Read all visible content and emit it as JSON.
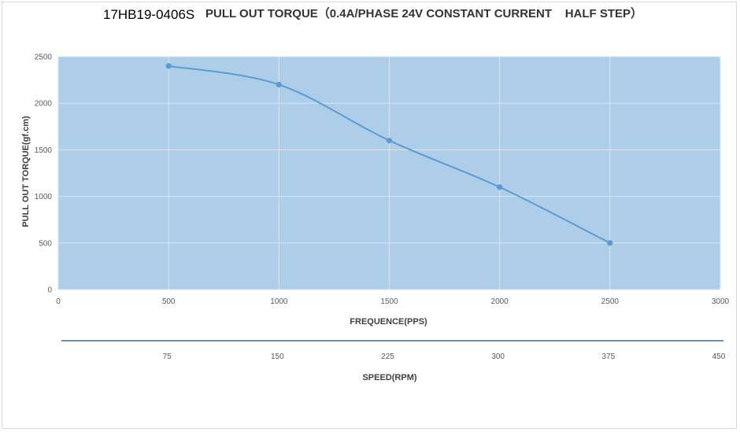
{
  "chart_data": {
    "type": "line",
    "title_model": "17HB19-0406S",
    "title": "PULL OUT TORQUE（0.4A/PHASE 24V CONSTANT CURRENT    HALF STEP）",
    "xlabel": "FREQUENCE(PPS)",
    "ylabel": "PULL OUT TORQUE(gf.cm)",
    "xlim": [
      0,
      3000
    ],
    "ylim": [
      0,
      2500
    ],
    "x_ticks": [
      0,
      500,
      1000,
      1500,
      2000,
      2500,
      3000
    ],
    "y_ticks": [
      0,
      500,
      1000,
      1500,
      2000,
      2500
    ],
    "grid": true,
    "plot_background": "#aecde9",
    "line_color": "#5b9bd5",
    "series": [
      {
        "x": [
          500,
          1000,
          1500,
          2000,
          2500
        ],
        "y": [
          2400,
          2200,
          1600,
          1100,
          500
        ]
      }
    ],
    "secondary_axis": {
      "label": "SPEED(RPM)",
      "ticks": [
        "75",
        "150",
        "225",
        "300",
        "375",
        "450"
      ],
      "tick_positions_pps": [
        500,
        1000,
        1500,
        2000,
        2500,
        3000
      ],
      "line_color": "#1f4e79"
    }
  }
}
